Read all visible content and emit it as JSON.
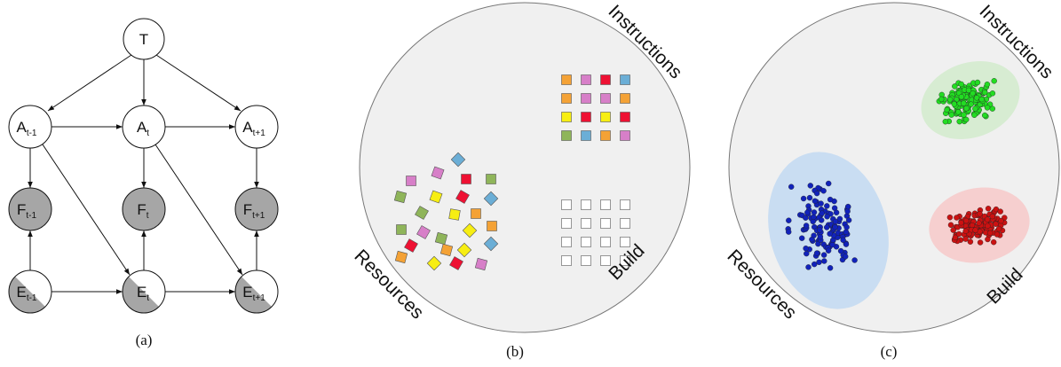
{
  "panel_a": {
    "caption": "(a)",
    "nodes": {
      "T": {
        "main": "T",
        "sub": ""
      },
      "A_prev": {
        "main": "A",
        "sub": "t-1"
      },
      "A_t": {
        "main": "A",
        "sub": "t"
      },
      "A_next": {
        "main": "A",
        "sub": "t+1"
      },
      "F_prev": {
        "main": "F",
        "sub": "t-1"
      },
      "F_t": {
        "main": "F",
        "sub": "t"
      },
      "F_next": {
        "main": "F",
        "sub": "t+1"
      },
      "E_prev": {
        "main": "E",
        "sub": "t-1"
      },
      "E_t": {
        "main": "E",
        "sub": "t"
      },
      "E_next": {
        "main": "E",
        "sub": "t+1"
      }
    }
  },
  "panel_b": {
    "caption": "(b)",
    "labels": {
      "instructions": "Instructions",
      "resources": "Resources",
      "build": "Build"
    }
  },
  "panel_c": {
    "caption": "(c)",
    "labels": {
      "instructions": "Instructions",
      "resources": "Resources",
      "build": "Build"
    }
  },
  "colors": {
    "node_white": "#ffffff",
    "node_gray": "#a6a6a6",
    "region_bg": "#f0f0f0",
    "orange": "#f4a236",
    "pink": "#d77fc8",
    "red": "#ee1133",
    "blue_sq": "#6baed6",
    "yellow": "#f7ee12",
    "green_sq": "#8fb55a",
    "cluster_green": "#22dd22",
    "cluster_red": "#cc1111",
    "cluster_blue": "#1122bb"
  }
}
